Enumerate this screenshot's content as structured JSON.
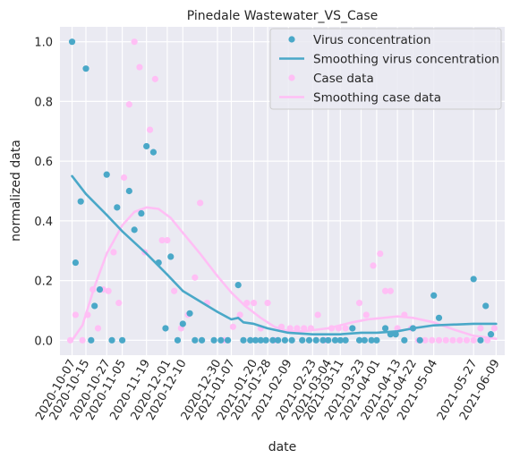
{
  "chart_data": {
    "type": "scatter",
    "title": "Pinedale Wastewater_VS_Case",
    "xlabel": "date",
    "ylabel": "normalized data",
    "xlim": [
      "2020-09-30",
      "2021-06-14"
    ],
    "ylim": [
      -0.05,
      1.05
    ],
    "grid": true,
    "legend_position": "top-right",
    "x_ticks": [
      "2020-10-07",
      "2020-10-15",
      "2020-10-27",
      "2020-11-05",
      "2020-11-19",
      "2020-12-01",
      "2020-12-10",
      "2020-12-30",
      "2021-01-07",
      "2021-01-20",
      "2021-01-28",
      "2021-02-09",
      "2021-02-23",
      "2021-03-04",
      "2021-03-11",
      "2021-03-23",
      "2021-04-01",
      "2021-04-13",
      "2021-04-22",
      "2021-05-04",
      "2021-05-27",
      "2021-06-09"
    ],
    "y_ticks": [
      "0.0",
      "0.2",
      "0.4",
      "0.6",
      "0.8",
      "1.0"
    ],
    "series": [
      {
        "name": "Virus concentration",
        "kind": "scatter",
        "color": "#4aa8c8",
        "points": [
          [
            "2020-10-07",
            1.0
          ],
          [
            "2020-10-09",
            0.26
          ],
          [
            "2020-10-12",
            0.465
          ],
          [
            "2020-10-15",
            0.91
          ],
          [
            "2020-10-18",
            0.0
          ],
          [
            "2020-10-20",
            0.115
          ],
          [
            "2020-10-23",
            0.17
          ],
          [
            "2020-10-27",
            0.555
          ],
          [
            "2020-10-30",
            0.0
          ],
          [
            "2020-11-02",
            0.445
          ],
          [
            "2020-11-05",
            0.0
          ],
          [
            "2020-11-09",
            0.5
          ],
          [
            "2020-11-12",
            0.37
          ],
          [
            "2020-11-16",
            0.425
          ],
          [
            "2020-11-19",
            0.65
          ],
          [
            "2020-11-23",
            0.63
          ],
          [
            "2020-11-26",
            0.26
          ],
          [
            "2020-11-30",
            0.04
          ],
          [
            "2020-12-03",
            0.28
          ],
          [
            "2020-12-07",
            0.0
          ],
          [
            "2020-12-10",
            0.055
          ],
          [
            "2020-12-14",
            0.09
          ],
          [
            "2020-12-17",
            0.0
          ],
          [
            "2020-12-21",
            0.0
          ],
          [
            "2020-12-28",
            0.0
          ],
          [
            "2021-01-01",
            0.0
          ],
          [
            "2021-01-05",
            0.0
          ],
          [
            "2021-01-11",
            0.185
          ],
          [
            "2021-01-14",
            0.0
          ],
          [
            "2021-01-18",
            0.0
          ],
          [
            "2021-01-21",
            0.0
          ],
          [
            "2021-01-24",
            0.0
          ],
          [
            "2021-01-27",
            0.0
          ],
          [
            "2021-01-31",
            0.0
          ],
          [
            "2021-02-03",
            0.0
          ],
          [
            "2021-02-07",
            0.0
          ],
          [
            "2021-02-11",
            0.0
          ],
          [
            "2021-02-17",
            0.0
          ],
          [
            "2021-02-21",
            0.0
          ],
          [
            "2021-02-25",
            0.0
          ],
          [
            "2021-03-01",
            0.0
          ],
          [
            "2021-03-04",
            0.0
          ],
          [
            "2021-03-08",
            0.0
          ],
          [
            "2021-03-11",
            0.0
          ],
          [
            "2021-03-14",
            0.0
          ],
          [
            "2021-03-18",
            0.04
          ],
          [
            "2021-03-22",
            0.0
          ],
          [
            "2021-03-25",
            0.0
          ],
          [
            "2021-03-29",
            0.0
          ],
          [
            "2021-04-01",
            0.0
          ],
          [
            "2021-04-06",
            0.04
          ],
          [
            "2021-04-09",
            0.02
          ],
          [
            "2021-04-12",
            0.02
          ],
          [
            "2021-04-17",
            0.0
          ],
          [
            "2021-04-22",
            0.04
          ],
          [
            "2021-04-26",
            0.0
          ],
          [
            "2021-05-04",
            0.15
          ],
          [
            "2021-05-07",
            0.075
          ],
          [
            "2021-05-27",
            0.205
          ],
          [
            "2021-05-31",
            0.0
          ],
          [
            "2021-06-03",
            0.115
          ],
          [
            "2021-06-06",
            0.02
          ]
        ]
      },
      {
        "name": "Smoothing virus concentration",
        "kind": "line",
        "color": "#4aa8c8",
        "points": [
          [
            "2020-10-07",
            0.55
          ],
          [
            "2020-10-15",
            0.49
          ],
          [
            "2020-10-27",
            0.42
          ],
          [
            "2020-11-05",
            0.365
          ],
          [
            "2020-11-19",
            0.29
          ],
          [
            "2020-12-01",
            0.22
          ],
          [
            "2020-12-10",
            0.165
          ],
          [
            "2020-12-30",
            0.095
          ],
          [
            "2021-01-07",
            0.07
          ],
          [
            "2021-01-11",
            0.075
          ],
          [
            "2021-01-14",
            0.06
          ],
          [
            "2021-01-20",
            0.055
          ],
          [
            "2021-01-28",
            0.04
          ],
          [
            "2021-02-09",
            0.025
          ],
          [
            "2021-02-23",
            0.02
          ],
          [
            "2021-03-04",
            0.02
          ],
          [
            "2021-03-11",
            0.02
          ],
          [
            "2021-03-23",
            0.025
          ],
          [
            "2021-04-01",
            0.025
          ],
          [
            "2021-04-13",
            0.03
          ],
          [
            "2021-04-22",
            0.04
          ],
          [
            "2021-05-04",
            0.05
          ],
          [
            "2021-05-27",
            0.055
          ],
          [
            "2021-06-09",
            0.055
          ]
        ]
      },
      {
        "name": "Case data",
        "kind": "scatter",
        "color": "#ffbff5",
        "points": [
          [
            "2020-10-06",
            0.0
          ],
          [
            "2020-10-09",
            0.085
          ],
          [
            "2020-10-13",
            0.0
          ],
          [
            "2020-10-16",
            0.085
          ],
          [
            "2020-10-19",
            0.17
          ],
          [
            "2020-10-22",
            0.04
          ],
          [
            "2020-10-25",
            0.17
          ],
          [
            "2020-10-28",
            0.165
          ],
          [
            "2020-10-31",
            0.295
          ],
          [
            "2020-11-03",
            0.125
          ],
          [
            "2020-11-06",
            0.545
          ],
          [
            "2020-11-09",
            0.79
          ],
          [
            "2020-11-12",
            1.0
          ],
          [
            "2020-11-15",
            0.915
          ],
          [
            "2020-11-18",
            0.295
          ],
          [
            "2020-11-21",
            0.705
          ],
          [
            "2020-11-24",
            0.875
          ],
          [
            "2020-11-28",
            0.335
          ],
          [
            "2020-12-01",
            0.335
          ],
          [
            "2020-12-05",
            0.165
          ],
          [
            "2020-12-09",
            0.04
          ],
          [
            "2020-12-13",
            0.085
          ],
          [
            "2020-12-17",
            0.21
          ],
          [
            "2020-12-20",
            0.46
          ],
          [
            "2020-12-24",
            0.125
          ],
          [
            "2021-01-03",
            0.0
          ],
          [
            "2021-01-08",
            0.045
          ],
          [
            "2021-01-12",
            0.085
          ],
          [
            "2021-01-16",
            0.125
          ],
          [
            "2021-01-20",
            0.125
          ],
          [
            "2021-01-24",
            0.04
          ],
          [
            "2021-01-28",
            0.125
          ],
          [
            "2021-02-01",
            0.0
          ],
          [
            "2021-02-05",
            0.045
          ],
          [
            "2021-02-10",
            0.04
          ],
          [
            "2021-02-14",
            0.04
          ],
          [
            "2021-02-18",
            0.04
          ],
          [
            "2021-02-22",
            0.04
          ],
          [
            "2021-02-26",
            0.085
          ],
          [
            "2021-03-02",
            0.0
          ],
          [
            "2021-03-06",
            0.04
          ],
          [
            "2021-03-10",
            0.04
          ],
          [
            "2021-03-14",
            0.04
          ],
          [
            "2021-03-18",
            0.04
          ],
          [
            "2021-03-22",
            0.125
          ],
          [
            "2021-03-26",
            0.085
          ],
          [
            "2021-03-30",
            0.25
          ],
          [
            "2021-04-03",
            0.29
          ],
          [
            "2021-04-06",
            0.165
          ],
          [
            "2021-04-09",
            0.165
          ],
          [
            "2021-04-13",
            0.04
          ],
          [
            "2021-04-17",
            0.085
          ],
          [
            "2021-04-21",
            0.04
          ],
          [
            "2021-04-25",
            0.0
          ],
          [
            "2021-04-29",
            0.0
          ],
          [
            "2021-05-03",
            0.0
          ],
          [
            "2021-05-07",
            0.0
          ],
          [
            "2021-05-11",
            0.0
          ],
          [
            "2021-05-15",
            0.0
          ],
          [
            "2021-05-19",
            0.0
          ],
          [
            "2021-05-23",
            0.0
          ],
          [
            "2021-05-27",
            0.0
          ],
          [
            "2021-05-31",
            0.04
          ],
          [
            "2021-06-04",
            0.0
          ],
          [
            "2021-06-08",
            0.04
          ]
        ]
      },
      {
        "name": "Smoothing case data",
        "kind": "line",
        "color": "#ffbff5",
        "points": [
          [
            "2020-10-07",
            0.0
          ],
          [
            "2020-10-13",
            0.05
          ],
          [
            "2020-10-20",
            0.18
          ],
          [
            "2020-10-27",
            0.29
          ],
          [
            "2020-11-05",
            0.385
          ],
          [
            "2020-11-12",
            0.43
          ],
          [
            "2020-11-19",
            0.445
          ],
          [
            "2020-11-26",
            0.44
          ],
          [
            "2020-12-03",
            0.41
          ],
          [
            "2020-12-10",
            0.36
          ],
          [
            "2020-12-20",
            0.29
          ],
          [
            "2020-12-30",
            0.215
          ],
          [
            "2021-01-07",
            0.16
          ],
          [
            "2021-01-15",
            0.115
          ],
          [
            "2021-01-24",
            0.075
          ],
          [
            "2021-02-01",
            0.045
          ],
          [
            "2021-02-09",
            0.03
          ],
          [
            "2021-02-17",
            0.03
          ],
          [
            "2021-02-25",
            0.035
          ],
          [
            "2021-03-04",
            0.04
          ],
          [
            "2021-03-11",
            0.05
          ],
          [
            "2021-03-18",
            0.06
          ],
          [
            "2021-03-27",
            0.07
          ],
          [
            "2021-04-05",
            0.075
          ],
          [
            "2021-04-13",
            0.08
          ],
          [
            "2021-04-22",
            0.075
          ],
          [
            "2021-05-04",
            0.06
          ],
          [
            "2021-05-16",
            0.035
          ],
          [
            "2021-05-27",
            0.015
          ],
          [
            "2021-06-09",
            0.005
          ]
        ]
      }
    ]
  }
}
